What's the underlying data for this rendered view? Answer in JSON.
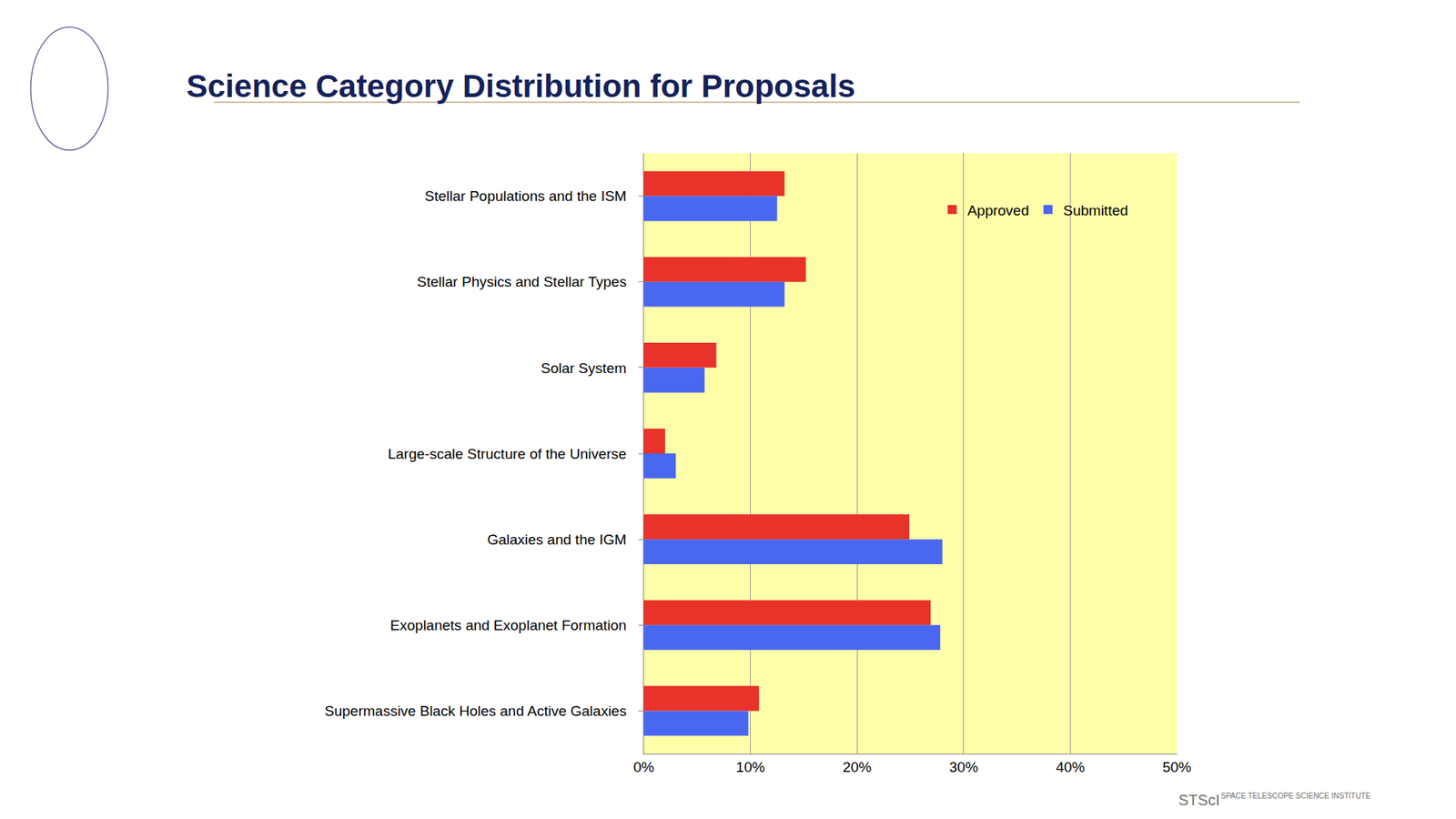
{
  "chart_data": {
    "type": "bar",
    "orientation": "horizontal",
    "title": "Science Category Distribution for Proposals",
    "categories": [
      "Stellar Populations and the ISM",
      "Stellar Physics and Stellar Types",
      "Solar System",
      "Large-scale Structure of the Universe",
      "Galaxies and the IGM",
      "Exoplanets and Exoplanet Formation",
      "Supermassive Black Holes and Active Galaxies"
    ],
    "series": [
      {
        "name": "Approved",
        "color": "#e8322a",
        "values": [
          13.2,
          15.2,
          6.8,
          2.0,
          24.9,
          26.9,
          10.8
        ]
      },
      {
        "name": "Submitted",
        "color": "#4a67f2",
        "values": [
          12.5,
          13.2,
          5.7,
          3.0,
          28.0,
          27.8,
          9.8
        ]
      }
    ],
    "xlim": [
      0,
      50
    ],
    "xticks": [
      {
        "value": 0,
        "label": "0%"
      },
      {
        "value": 10,
        "label": "10%"
      },
      {
        "value": 20,
        "label": "20%"
      },
      {
        "value": 30,
        "label": "30%"
      },
      {
        "value": 40,
        "label": "40%"
      },
      {
        "value": 50,
        "label": "50%"
      }
    ],
    "grid": true,
    "legend": "upper right",
    "annotations": [
      "STScI",
      "SPACE TELESCOPE SCIENCE INSTITUTE"
    ]
  }
}
